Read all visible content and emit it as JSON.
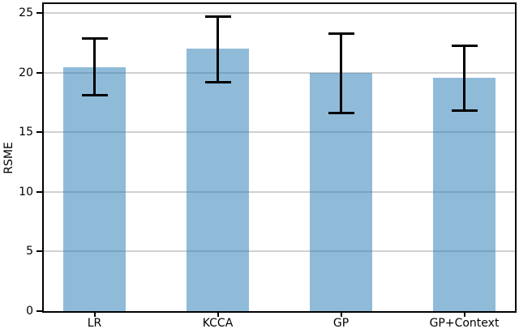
{
  "figure": {
    "background": "#ffffff",
    "text_color": "#000000"
  },
  "chart_data": {
    "type": "bar",
    "title": "",
    "xlabel": "",
    "ylabel": "RSME",
    "categories": [
      "LR",
      "KCCA",
      "GP",
      "GP+Context"
    ],
    "values": [
      20.5,
      22.0,
      20.0,
      19.6
    ],
    "error_low": [
      18.0,
      19.1,
      16.5,
      16.7
    ],
    "error_high": [
      23.0,
      24.8,
      23.4,
      22.4
    ],
    "ylim": [
      0,
      25.8
    ],
    "yticks": [
      0,
      5,
      10,
      15,
      20,
      25
    ],
    "grid": "horizontal",
    "legend": "none",
    "bar_color": "#1f77b4",
    "bar_alpha": 0.5,
    "bar_fill_rendered": "rgba(31,119,180,0.5)",
    "errorbar_color": "#000000",
    "gridline_color": "#d0d0d0",
    "spine_color": "#000000"
  }
}
